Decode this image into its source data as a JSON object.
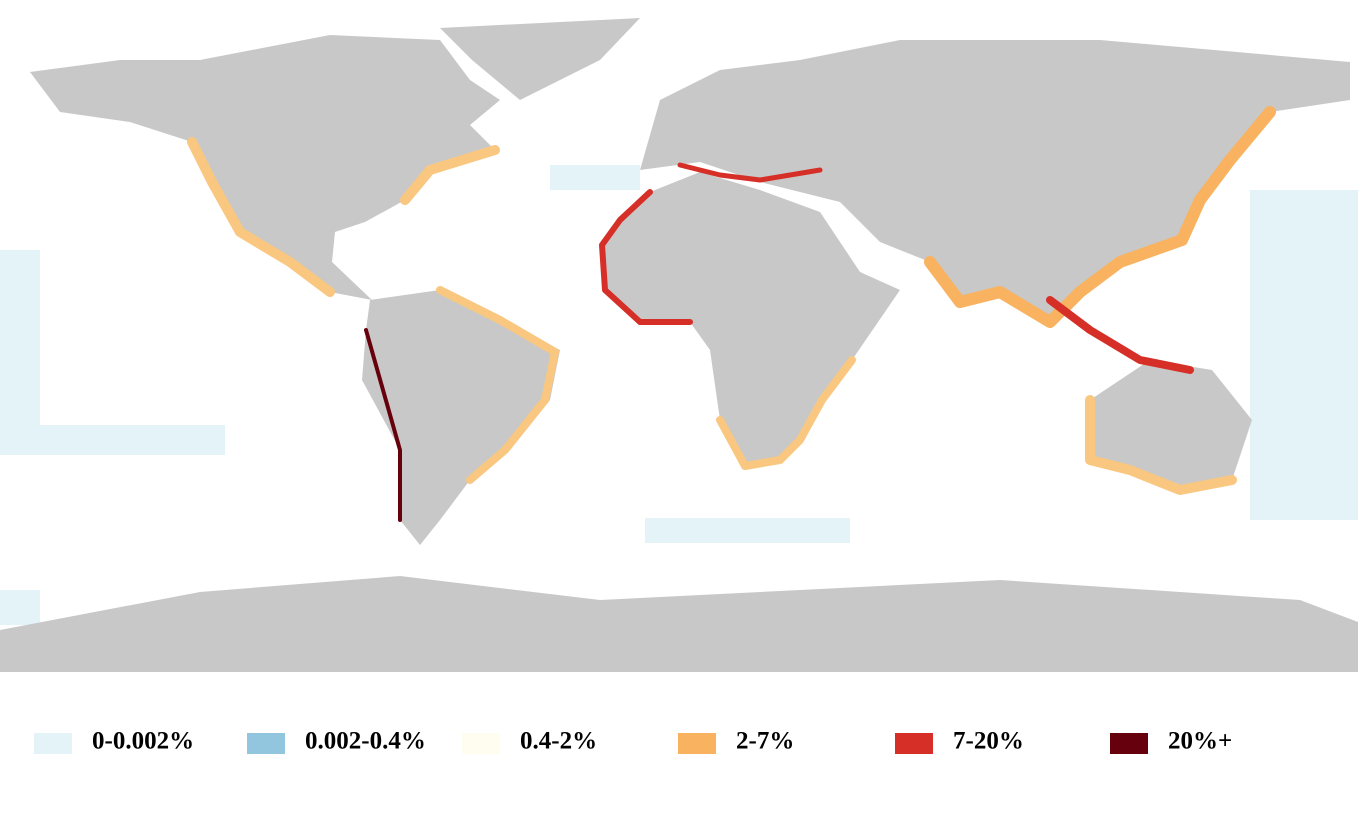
{
  "legend": {
    "items": [
      {
        "label": "0-0.002%",
        "color": "#e4f3f7"
      },
      {
        "label": "0.002-0.4%",
        "color": "#92c5de"
      },
      {
        "label": "0.4-2%",
        "color": "#fffdf0"
      },
      {
        "label": "2-7%",
        "color": "#f9b25f"
      },
      {
        "label": "7-20%",
        "color": "#d62f27"
      },
      {
        "label": "20%+",
        "color": "#67000d"
      }
    ]
  }
}
